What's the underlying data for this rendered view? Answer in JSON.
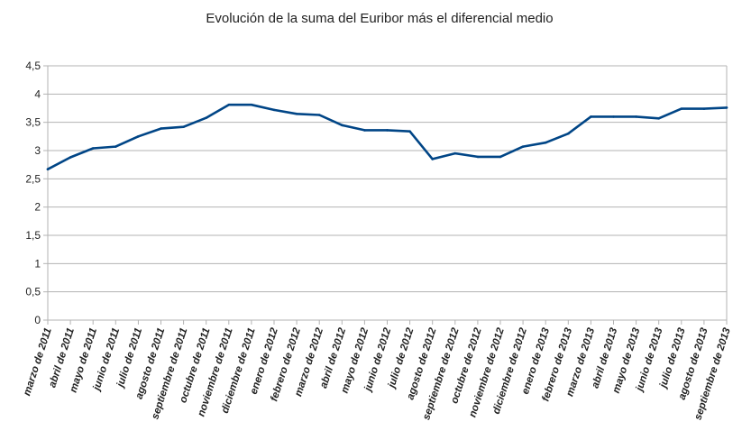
{
  "chart_data": {
    "type": "line",
    "title": "Evolución de la suma del Euribor más el diferencial medio",
    "xlabel": "",
    "ylabel": "",
    "ylim": [
      0,
      4.5
    ],
    "yticks": [
      "0",
      "0,5",
      "1",
      "1,5",
      "2",
      "2,5",
      "3",
      "3,5",
      "4",
      "4,5"
    ],
    "grid": true,
    "legend": "none",
    "line_color": "#004586",
    "categories": [
      "marzo de 2011",
      "abril de 2011",
      "mayo de 2011",
      "junio de 2011",
      "julio de 2011",
      "agosto de 2011",
      "septiembre de 2011",
      "octubre de 2011",
      "noviembre de 2011",
      "diciembre de 2011",
      "enero de 2012",
      "febrero de 2012",
      "marzo de 2012",
      "abril de 2012",
      "mayo de 2012",
      "junio de 2012",
      "julio de 2012",
      "agosto de 2012",
      "septiembre de 2012",
      "octubre de 2012",
      "noviembre de 2012",
      "diciembre de 2012",
      "enero de 2013",
      "febrero de 2013",
      "marzo de 2013",
      "abril de 2013",
      "mayo de 2013",
      "junio de 2013",
      "julio de 2013",
      "agosto de 2013",
      "septiembre de 2013"
    ],
    "series": [
      {
        "values": [
          2.67,
          2.88,
          3.04,
          3.07,
          3.25,
          3.39,
          3.42,
          3.58,
          3.81,
          3.81,
          3.72,
          3.65,
          3.63,
          3.45,
          3.36,
          3.36,
          3.34,
          2.85,
          2.95,
          2.89,
          2.89,
          3.07,
          3.14,
          3.3,
          3.6,
          3.6,
          3.6,
          3.57,
          3.74,
          3.74,
          3.76
        ]
      }
    ]
  }
}
